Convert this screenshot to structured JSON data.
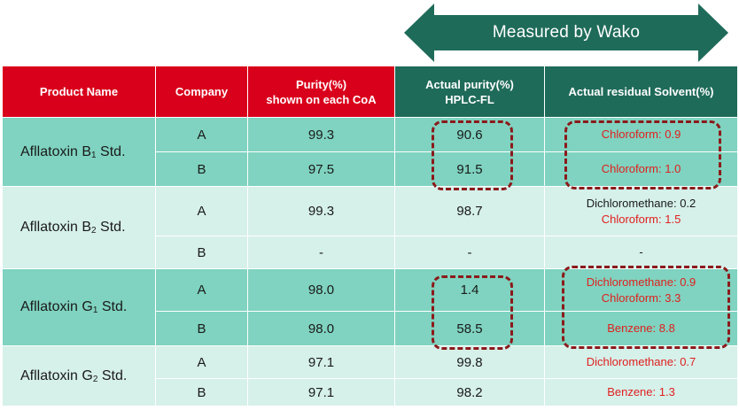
{
  "banner": {
    "label": "Measured by Wako"
  },
  "colors": {
    "header_red": "#d9001b",
    "header_green": "#1f6b5a",
    "row_dark": "#7fd3c0",
    "row_light": "#d6f0ea",
    "highlight_text": "#e0201e",
    "dashed_box": "#8b1a1a"
  },
  "headers": {
    "product": "Product Name",
    "company": "Company",
    "purity_line1": "Purity(%)",
    "purity_line2": "shown on each CoA",
    "actual_line1": "Actual purity(%)",
    "actual_line2": "HPLC-FL",
    "solvent": "Actual residual Solvent(%)"
  },
  "rows": [
    {
      "product_prefix": "Afllatoxin B",
      "product_sub": "1",
      "product_suffix": " Std.",
      "entries": [
        {
          "company": "A",
          "coa": "99.3",
          "actual": "90.6",
          "solvent_lines": [
            "Chloroform: 0.9"
          ]
        },
        {
          "company": "B",
          "coa": "97.5",
          "actual": "91.5",
          "solvent_lines": [
            "Chloroform: 1.0"
          ]
        }
      ]
    },
    {
      "product_prefix": "Afllatoxin B",
      "product_sub": "2",
      "product_suffix": " Std.",
      "entries": [
        {
          "company": "A",
          "coa": "99.3",
          "actual": "98.7",
          "solvent_lines": [
            "Dichloromethane: 0.2",
            "Chloroform: 1.5"
          ]
        },
        {
          "company": "B",
          "coa": "-",
          "actual": "-",
          "solvent_lines": [
            "-"
          ]
        }
      ]
    },
    {
      "product_prefix": "Afllatoxin G",
      "product_sub": "1",
      "product_suffix": " Std.",
      "entries": [
        {
          "company": "A",
          "coa": "98.0",
          "actual": "1.4",
          "solvent_lines": [
            "Dichloromethane: 0.9",
            "Chloroform: 3.3"
          ]
        },
        {
          "company": "B",
          "coa": "98.0",
          "actual": "58.5",
          "solvent_lines": [
            "Benzene: 8.8"
          ]
        }
      ]
    },
    {
      "product_prefix": "Afllatoxin G",
      "product_sub": "2",
      "product_suffix": " Std.",
      "entries": [
        {
          "company": "A",
          "coa": "97.1",
          "actual": "99.8",
          "solvent_lines": [
            "Dichloromethane: 0.7"
          ]
        },
        {
          "company": "B",
          "coa": "97.1",
          "actual": "98.2",
          "solvent_lines": [
            "Benzene: 1.3"
          ]
        }
      ]
    }
  ]
}
